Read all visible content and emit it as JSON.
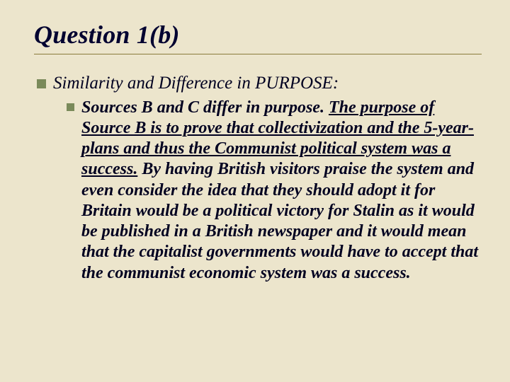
{
  "slide": {
    "background_color": "#ece5cc",
    "underline_color": "#8a7a3a",
    "bullet_color": "#7a8a5a",
    "text_color": "#000020",
    "title": "Question 1(b)",
    "title_fontsize": 36,
    "level1": {
      "text": "Similarity and Difference in PURPOSE:",
      "fontsize": 25
    },
    "level2": {
      "prefix": "Sources B and C differ in purpose. ",
      "underlined": "The purpose of Source B is to prove that collectivization and the 5-year-plans and thus the Communist political system was a success.",
      "suffix": " By having British visitors praise the system and even consider the idea that they should adopt it for Britain would be a political victory for Stalin as it would be published in a British newspaper and it would mean that the capitalist governments would have to accept that the communist economic system was a success.",
      "fontsize": 24
    }
  }
}
